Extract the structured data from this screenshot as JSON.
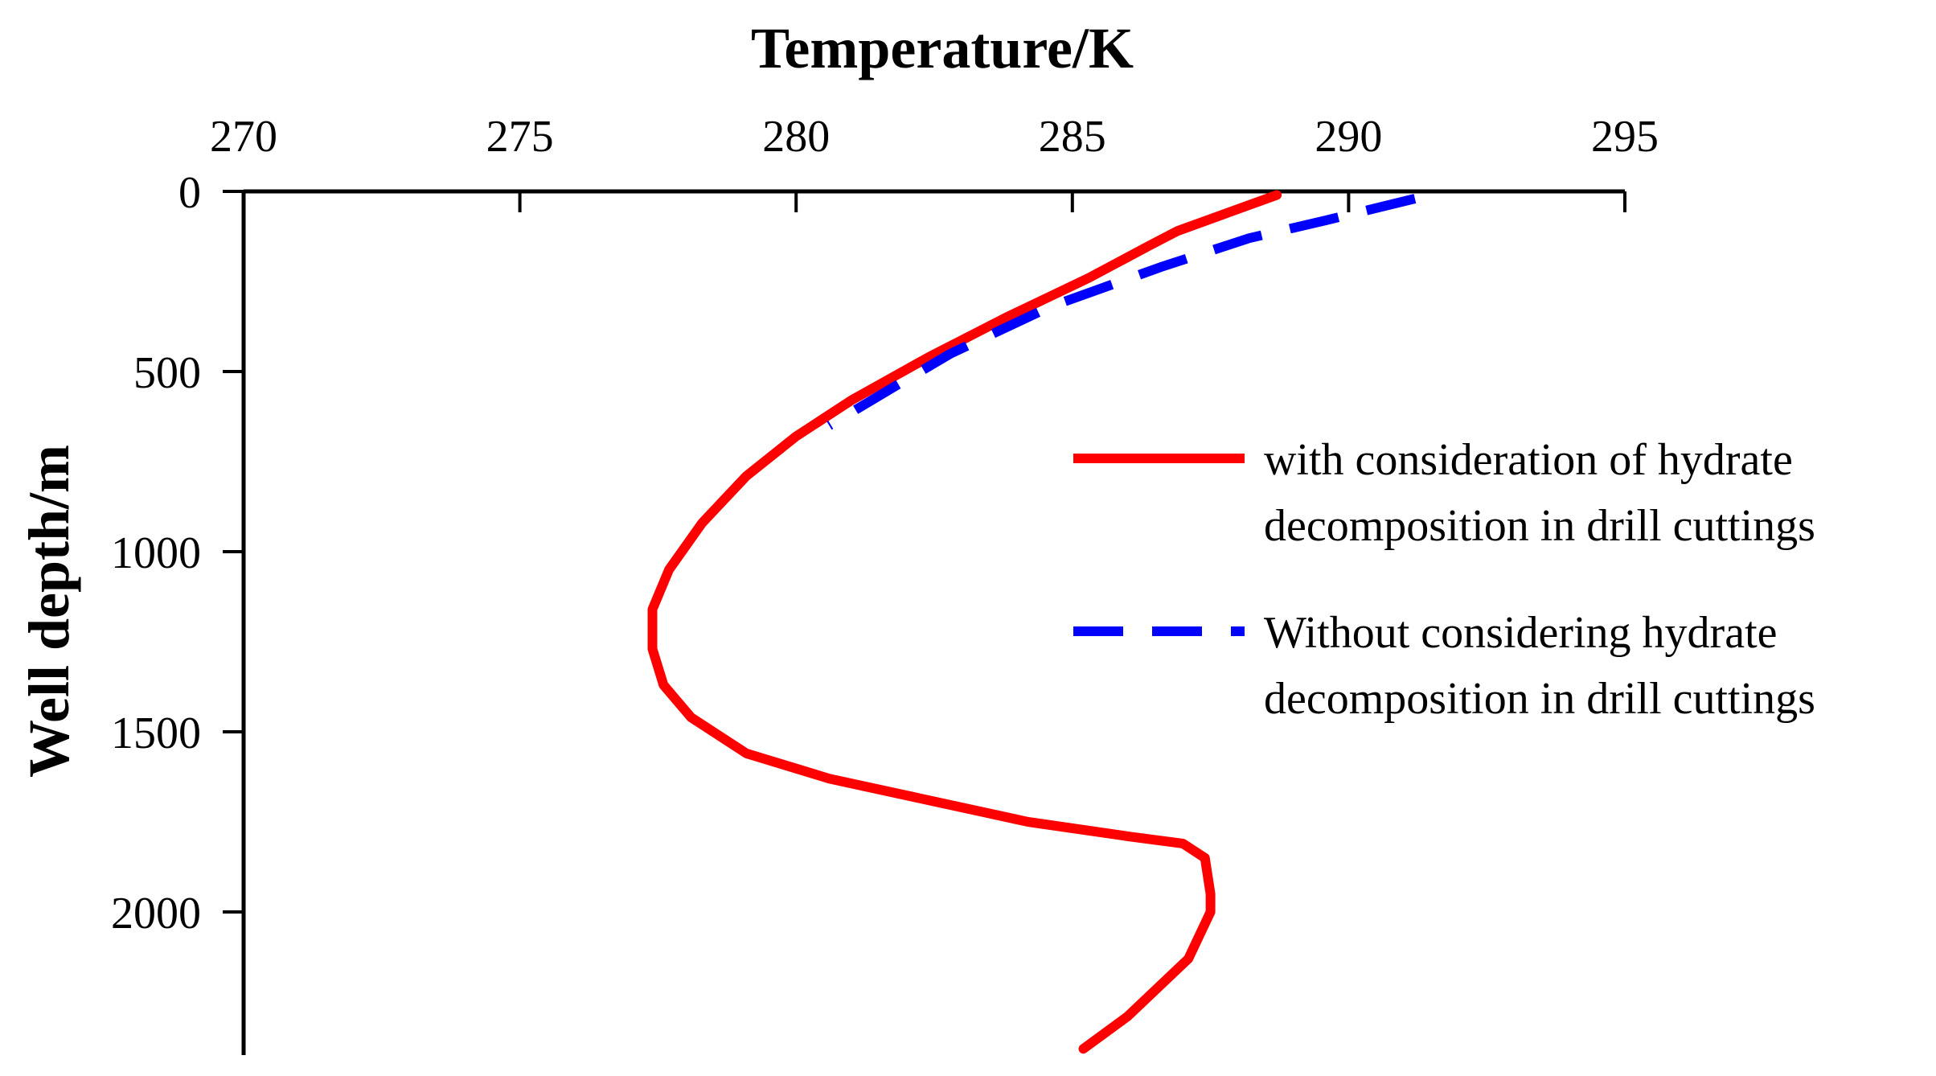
{
  "chart_data": {
    "type": "line",
    "xlabel": "Temperature/K",
    "ylabel": "Well depth/m",
    "x_axis_position": "top",
    "y_axis_inverted": true,
    "xlim": [
      270,
      295
    ],
    "ylim": [
      0,
      2400
    ],
    "xticks": [
      "270",
      "275",
      "280",
      "285",
      "290",
      "295"
    ],
    "yticks": [
      "0",
      "500",
      "1000",
      "1500",
      "2000"
    ],
    "grid": false,
    "legend_position": "right",
    "series": [
      {
        "name": "with consideration of hydrate decomposition in drill cuttings",
        "name_lines": [
          "with consideration of hydrate",
          "decomposition in drill cuttings"
        ],
        "color": "#ff0000",
        "style": "solid",
        "points": [
          [
            288.7,
            10
          ],
          [
            287.8,
            60
          ],
          [
            286.9,
            110
          ],
          [
            286.4,
            150
          ],
          [
            285.3,
            240
          ],
          [
            283.8,
            350
          ],
          [
            282.4,
            460
          ],
          [
            281.0,
            580
          ],
          [
            280.0,
            680
          ],
          [
            279.1,
            790
          ],
          [
            278.3,
            920
          ],
          [
            277.7,
            1050
          ],
          [
            277.4,
            1160
          ],
          [
            277.4,
            1270
          ],
          [
            277.6,
            1370
          ],
          [
            278.1,
            1460
          ],
          [
            279.1,
            1560
          ],
          [
            280.6,
            1630
          ],
          [
            282.4,
            1690
          ],
          [
            284.2,
            1750
          ],
          [
            286.0,
            1790
          ],
          [
            287.0,
            1810
          ],
          [
            287.4,
            1850
          ],
          [
            287.5,
            1950
          ],
          [
            287.5,
            2000
          ],
          [
            287.1,
            2130
          ],
          [
            286.0,
            2290
          ],
          [
            285.2,
            2380
          ]
        ]
      },
      {
        "name": "Without considering hydrate decomposition in drill cuttings",
        "name_lines": [
          "Without considering hydrate",
          "decomposition in drill cuttings"
        ],
        "color": "#0000ff",
        "style": "dashed",
        "points": [
          [
            291.2,
            20
          ],
          [
            289.6,
            80
          ],
          [
            288.2,
            130
          ],
          [
            286.6,
            210
          ],
          [
            284.6,
            320
          ],
          [
            282.8,
            450
          ],
          [
            281.8,
            540
          ],
          [
            280.6,
            650
          ]
        ]
      }
    ]
  }
}
